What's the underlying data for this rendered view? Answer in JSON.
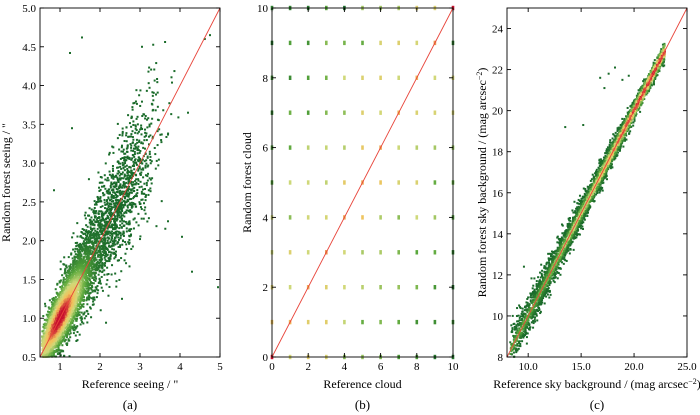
{
  "chart_data": [
    {
      "type": "scatter",
      "panel_label": "(a)",
      "xlabel": "Reference seeing / \"",
      "ylabel": "Random forest seeing / \"",
      "xlim": [
        0.5,
        5.0
      ],
      "ylim": [
        0.5,
        5.0
      ],
      "xticks": [
        "1",
        "2",
        "3",
        "4",
        "5"
      ],
      "yticks": [
        "0.5",
        "1.0",
        "1.5",
        "2.0",
        "2.5",
        "3.0",
        "3.5",
        "4.0",
        "4.5",
        "5.0"
      ],
      "reference_line": "y = x",
      "density_peak": [
        1.0,
        1.0
      ],
      "outliers": [
        [
          1.25,
          4.42
        ],
        [
          1.55,
          4.62
        ],
        [
          1.3,
          3.45
        ],
        [
          3.05,
          4.5
        ],
        [
          4.3,
          1.6
        ],
        [
          4.95,
          1.4
        ],
        [
          4.62,
          4.6
        ],
        [
          4.75,
          4.65
        ],
        [
          4.2,
          3.65
        ],
        [
          4.05,
          2.05
        ],
        [
          3.7,
          2.25
        ],
        [
          2.55,
          1.25
        ],
        [
          0.85,
          2.65
        ]
      ]
    },
    {
      "type": "scatter",
      "panel_label": "(b)",
      "xlabel": "Reference cloud",
      "ylabel": "Random forest cloud",
      "xlim": [
        0,
        10
      ],
      "ylim": [
        0,
        10
      ],
      "xticks": [
        "0",
        "2",
        "4",
        "6",
        "8",
        "10"
      ],
      "yticks": [
        "0",
        "2",
        "4",
        "6",
        "8",
        "10"
      ],
      "reference_line": "y = x",
      "grid_points": "integer pairs (x, y) with x in 0..10 and y in 0..10, colour by point density"
    },
    {
      "type": "scatter",
      "panel_label": "(c)",
      "xlabel": "Reference sky background / (mag arcsec",
      "xlabel_sup": "−2",
      "xlabel_end": ")",
      "ylabel": "Random forest sky background / (mag arcsec",
      "ylabel_sup": "−2",
      "ylabel_end": ")",
      "xlim": [
        8,
        25
      ],
      "ylim": [
        8,
        25
      ],
      "xticks": [
        "10.0",
        "15.0",
        "20.0",
        "25.0"
      ],
      "yticks": [
        "8",
        "10",
        "12",
        "14",
        "16",
        "18",
        "20",
        "22",
        "24"
      ],
      "reference_line": "y = x",
      "outliers": [
        [
          15.2,
          19.3
        ],
        [
          16.8,
          21.6
        ],
        [
          17.2,
          21.1
        ],
        [
          17.6,
          21.8
        ],
        [
          18.2,
          22.1
        ],
        [
          19.5,
          21.7
        ],
        [
          9.6,
          12.4
        ],
        [
          11.2,
          10.2
        ],
        [
          13.5,
          19.2
        ],
        [
          18.9,
          21.5
        ]
      ]
    }
  ],
  "colors": {
    "low_density": "#1a6b2a",
    "mid_low": "#5aa83c",
    "mid": "#cfd97a",
    "mid_high": "#f3c05a",
    "high_density": "#c8102e",
    "reference_line": "#e8443a"
  }
}
